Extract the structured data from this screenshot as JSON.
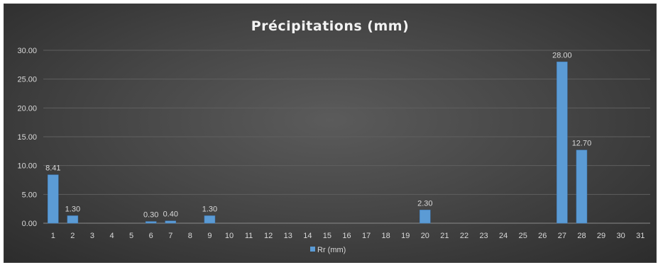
{
  "chart_data": {
    "type": "bar",
    "title": "Précipitations (mm)",
    "xlabel": "",
    "ylabel": "",
    "ylim": [
      0,
      30
    ],
    "yticks": [
      "0.00",
      "5.00",
      "10.00",
      "15.00",
      "20.00",
      "25.00",
      "30.00"
    ],
    "grid": true,
    "legend_position": "bottom",
    "categories": [
      "1",
      "2",
      "3",
      "4",
      "5",
      "6",
      "7",
      "8",
      "9",
      "10",
      "11",
      "12",
      "13",
      "14",
      "15",
      "16",
      "17",
      "18",
      "19",
      "20",
      "21",
      "22",
      "23",
      "24",
      "25",
      "26",
      "27",
      "28",
      "29",
      "30",
      "31"
    ],
    "series": [
      {
        "name": "Rr (mm)",
        "color": "#5b9bd5",
        "values": [
          8.41,
          1.3,
          0,
          0,
          0,
          0.3,
          0.4,
          0,
          1.3,
          0,
          0,
          0,
          0,
          0,
          0,
          0,
          0,
          0,
          0,
          2.3,
          0,
          0,
          0,
          0,
          0,
          0,
          28.0,
          12.7,
          0,
          0,
          0
        ],
        "data_labels": [
          "8.41",
          "1.30",
          "",
          "",
          "",
          "0.30",
          "0.40",
          "",
          "1.30",
          "",
          "",
          "",
          "",
          "",
          "",
          "",
          "",
          "",
          "",
          "2.30",
          "",
          "",
          "",
          "",
          "",
          "",
          "28.00",
          "12.70",
          "",
          "",
          ""
        ]
      }
    ]
  }
}
